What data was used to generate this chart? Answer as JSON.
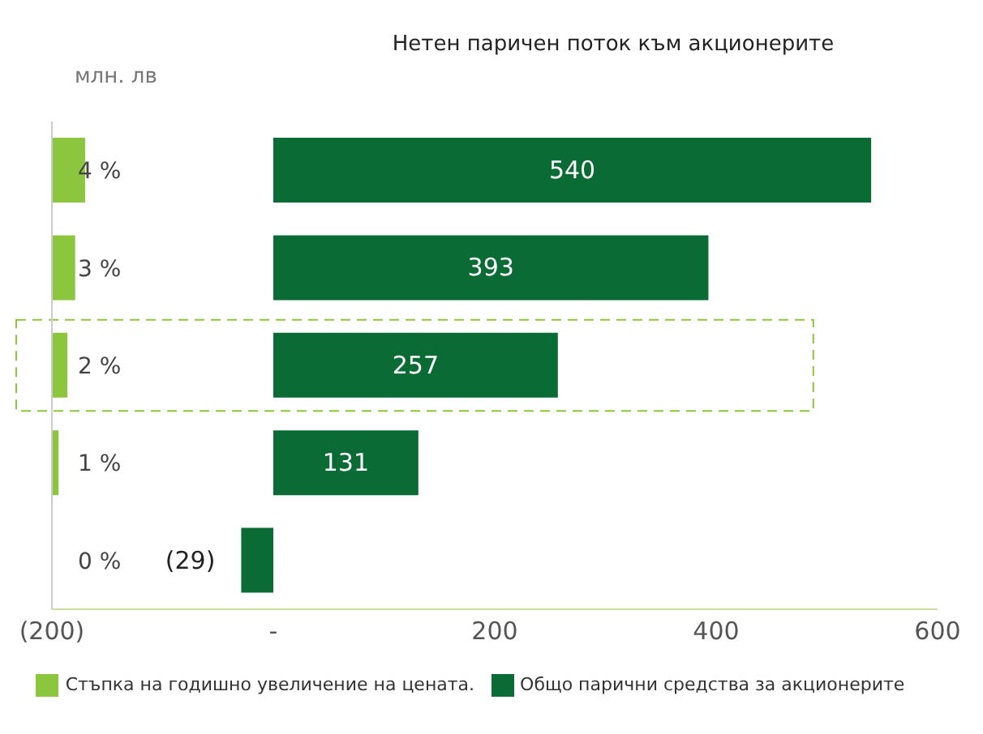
{
  "chart_data": {
    "type": "bar",
    "orientation": "horizontal",
    "title": "Нетен паричен поток към акционерите",
    "ylabel": "млн. лв",
    "categories": [
      "4 %",
      "3 %",
      "2 %",
      "1 %",
      "0 %"
    ],
    "series": [
      {
        "name": "Стъпка на годишно увеличение на цената.",
        "color": "#8cc63e",
        "base": [
          -200,
          -200,
          -200,
          -200,
          null
        ],
        "values": [
          30,
          21,
          14,
          6,
          null
        ]
      },
      {
        "name": "Общо парични средства за акционерите",
        "color": "#0b6b35",
        "values": [
          540,
          393,
          257,
          131,
          -29
        ],
        "value_labels": [
          "540",
          "393",
          "257",
          "131",
          "(29)"
        ]
      }
    ],
    "xlim": [
      -200,
      600
    ],
    "xticks": [
      {
        "value": -200,
        "label": "(200)"
      },
      {
        "value": 0,
        "label": "-"
      },
      200,
      400,
      600
    ],
    "grid": false,
    "legend": "bottom"
  }
}
